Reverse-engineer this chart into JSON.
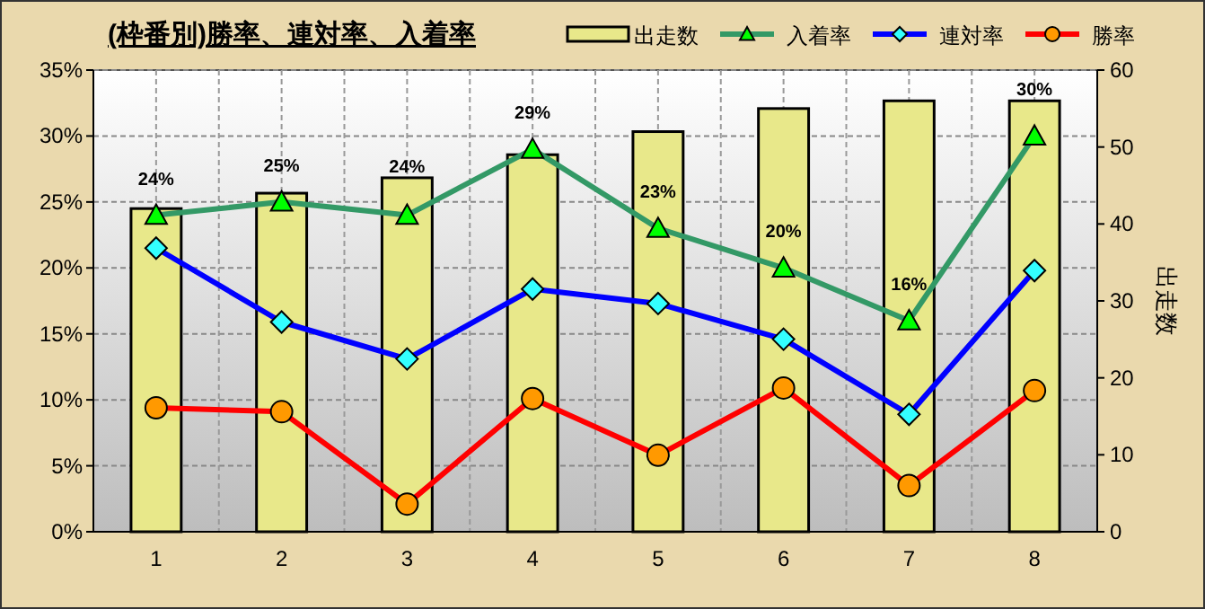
{
  "chart_data": {
    "type": "line",
    "title": "(枠番別)勝率、連対率、入着率",
    "y2label": "出走数",
    "categories": [
      "1",
      "2",
      "3",
      "4",
      "5",
      "6",
      "7",
      "8"
    ],
    "series": [
      {
        "name": "出走数",
        "type": "bar",
        "axis": "y2",
        "color": "#e8e88a",
        "values": [
          42,
          44,
          46,
          49,
          52,
          55,
          56,
          56
        ]
      },
      {
        "name": "入着率",
        "color": "#339966",
        "marker": "triangle",
        "values": [
          24,
          25,
          24,
          29,
          23,
          20,
          16,
          30
        ],
        "value_labels": [
          "24%",
          "25%",
          "24%",
          "29%",
          "23%",
          "20%",
          "16%",
          "30%"
        ]
      },
      {
        "name": "連対率",
        "color": "#0000ff",
        "marker": "diamond",
        "values": [
          21.5,
          15.9,
          13.1,
          18.4,
          17.3,
          14.6,
          8.9,
          19.8
        ]
      },
      {
        "name": "勝率",
        "color": "#ff0000",
        "marker": "circle",
        "values": [
          9.4,
          9.1,
          2.1,
          10.1,
          5.8,
          10.9,
          3.5,
          10.7
        ]
      }
    ],
    "ylim": [
      0,
      35
    ],
    "yticks": [
      {
        "value": 0,
        "label": "0%"
      },
      {
        "value": 5,
        "label": "5%"
      },
      {
        "value": 10,
        "label": "10%"
      },
      {
        "value": 15,
        "label": "15%"
      },
      {
        "value": 20,
        "label": "20%"
      },
      {
        "value": 25,
        "label": "25%"
      },
      {
        "value": 30,
        "label": "30%"
      },
      {
        "value": 35,
        "label": "35%"
      }
    ],
    "y2lim": [
      0,
      60
    ],
    "y2ticks": [
      0,
      10,
      20,
      30,
      40,
      50,
      60
    ],
    "grid": true,
    "legend": "top right"
  }
}
